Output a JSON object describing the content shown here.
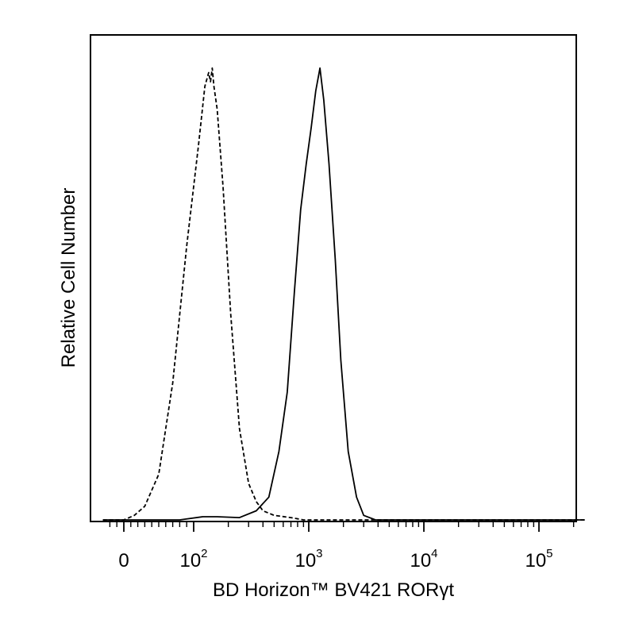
{
  "chart_data": {
    "type": "line",
    "xlabel": "BD Horizon™ BV421 RORγt",
    "ylabel": "Relative Cell Number",
    "x_scale": "biexponential",
    "x_ticks": [
      {
        "value": 0,
        "label": "0"
      },
      {
        "value": 100,
        "base": "10",
        "exp": "2"
      },
      {
        "value": 1000,
        "base": "10",
        "exp": "3"
      },
      {
        "value": 10000,
        "base": "10",
        "exp": "4"
      },
      {
        "value": 100000,
        "base": "10",
        "exp": "5"
      }
    ],
    "xlim": [
      -30,
      250000
    ],
    "ylim": [
      0,
      100
    ],
    "grid": false,
    "legend": "none",
    "series": [
      {
        "style": "dashed",
        "color": "#000000",
        "x": [
          -30,
          0,
          15,
          30,
          50,
          70,
          90,
          110,
          125,
          135,
          140,
          145,
          150,
          160,
          180,
          210,
          250,
          300,
          350,
          400,
          500,
          700,
          900,
          1500,
          3000,
          250000
        ],
        "y": [
          0,
          0,
          1,
          3,
          10,
          30,
          60,
          82,
          95,
          98,
          96,
          99,
          95,
          90,
          73,
          45,
          20,
          8,
          4,
          2,
          1,
          0.5,
          0,
          0,
          0,
          0
        ]
      },
      {
        "style": "solid",
        "color": "#000000",
        "x": [
          -30,
          80,
          120,
          160,
          250,
          350,
          450,
          550,
          650,
          750,
          850,
          950,
          1050,
          1150,
          1250,
          1350,
          1500,
          1700,
          1900,
          2200,
          2600,
          3000,
          3800,
          5000,
          250000
        ],
        "y": [
          0,
          0,
          0.7,
          0.7,
          0.5,
          2,
          5,
          15,
          28,
          50,
          68,
          78,
          86,
          94,
          99,
          92,
          78,
          57,
          35,
          15,
          5,
          1,
          0,
          0,
          0
        ]
      }
    ]
  }
}
